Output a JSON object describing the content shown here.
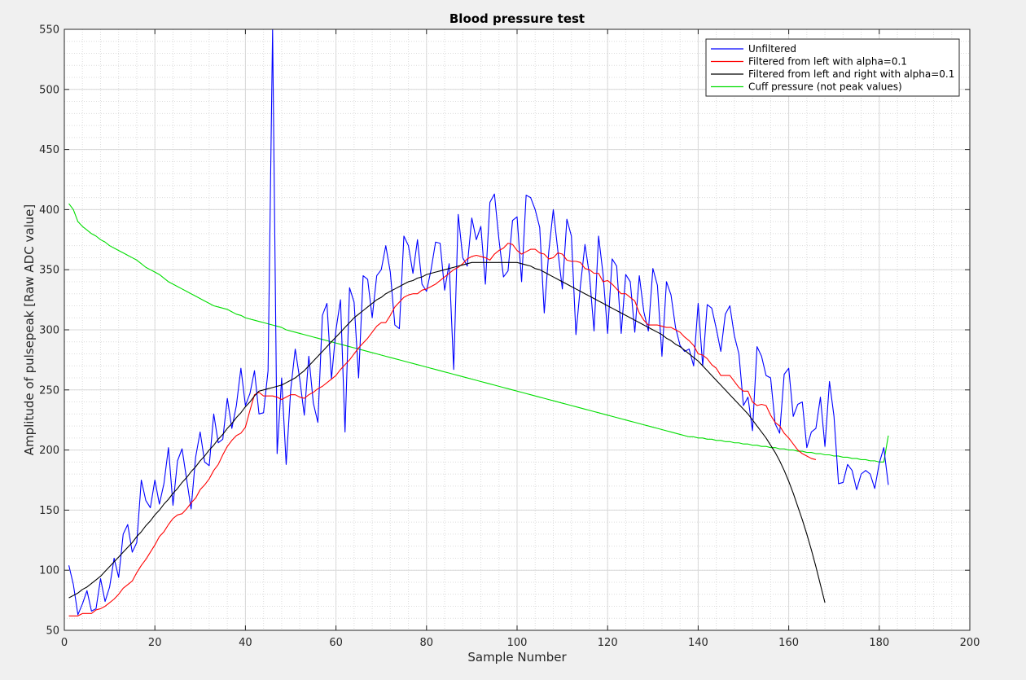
{
  "chart_data": {
    "type": "line",
    "title": "Blood pressure test",
    "xlabel": "Sample Number",
    "ylabel": "Amplitude of pulsepeak [Raw ADC value]",
    "xlim": [
      0,
      200
    ],
    "ylim": [
      50,
      550
    ],
    "x_ticks": [
      0,
      20,
      40,
      60,
      80,
      100,
      120,
      140,
      160,
      180,
      200
    ],
    "y_ticks": [
      50,
      100,
      150,
      200,
      250,
      300,
      350,
      400,
      450,
      500,
      550
    ],
    "x_tick_labels": [
      "0",
      "20",
      "40",
      "60",
      "80",
      "100",
      "120",
      "140",
      "160",
      "180",
      "200"
    ],
    "y_tick_labels": [
      "50",
      "100",
      "150",
      "200",
      "250",
      "300",
      "350",
      "400",
      "450",
      "500",
      "550"
    ],
    "grid": true,
    "minor_grid": true,
    "legend_position": "top-right",
    "series": [
      {
        "name": "Unfiltered",
        "color": "#0000ff",
        "x_start": 1,
        "values": [
          104,
          88,
          63,
          72,
          83,
          66,
          68,
          93,
          74,
          86,
          110,
          94,
          130,
          138,
          115,
          123,
          175,
          158,
          152,
          175,
          155,
          172,
          202,
          154,
          191,
          201,
          176,
          151,
          194,
          215,
          190,
          187,
          230,
          206,
          209,
          243,
          218,
          237,
          268,
          237,
          247,
          266,
          230,
          231,
          266,
          550,
          197,
          260,
          188,
          250,
          284,
          259,
          229,
          278,
          239,
          223,
          312,
          322,
          259,
          300,
          325,
          215,
          335,
          323,
          260,
          345,
          342,
          310,
          345,
          350,
          370,
          348,
          304,
          301,
          378,
          370,
          347,
          375,
          338,
          332,
          350,
          373,
          372,
          333,
          355,
          267,
          396,
          360,
          353,
          393,
          375,
          386,
          338,
          406,
          413,
          375,
          344,
          349,
          391,
          394,
          340,
          412,
          410,
          400,
          385,
          314,
          365,
          400,
          366,
          334,
          392,
          378,
          296,
          337,
          371,
          345,
          299,
          378,
          346,
          297,
          359,
          353,
          297,
          346,
          340,
          298,
          345,
          315,
          299,
          351,
          337,
          278,
          340,
          329,
          302,
          287,
          282,
          284,
          270,
          322,
          270,
          321,
          318,
          301,
          282,
          313,
          320,
          295,
          280,
          237,
          244,
          216,
          286,
          278,
          262,
          260,
          222,
          214,
          263,
          268,
          228,
          238,
          240,
          202,
          215,
          218,
          244,
          203,
          257,
          228,
          172,
          173,
          188,
          183,
          167,
          180,
          183,
          180,
          168,
          189,
          202,
          171
        ]
      },
      {
        "name": "Filtered from left with alpha=0.1",
        "color": "#ff0000",
        "x_start": 1,
        "values": [
          62,
          62,
          62,
          64,
          64,
          64,
          67,
          68,
          70,
          73,
          76,
          80,
          85,
          88,
          91,
          98,
          104,
          109,
          115,
          121,
          128,
          132,
          138,
          143,
          146,
          147,
          151,
          156,
          160,
          167,
          171,
          176,
          183,
          188,
          196,
          203,
          208,
          212,
          214,
          219,
          233,
          246,
          248,
          245,
          245,
          245,
          244,
          242,
          244,
          246,
          246,
          244,
          243,
          246,
          248,
          251,
          253,
          256,
          259,
          262,
          267,
          271,
          275,
          280,
          285,
          289,
          293,
          298,
          303,
          306,
          306,
          312,
          319,
          323,
          327,
          329,
          330,
          330,
          333,
          334,
          336,
          338,
          341,
          344,
          347,
          350,
          352,
          355,
          359,
          361,
          362,
          361,
          360,
          358,
          363,
          366,
          368,
          372,
          371,
          366,
          363,
          365,
          367,
          367,
          364,
          363,
          359,
          360,
          364,
          363,
          358,
          357,
          357,
          356,
          351,
          350,
          347,
          347,
          340,
          341,
          338,
          334,
          330,
          330,
          327,
          324,
          314,
          308,
          304,
          304,
          304,
          303,
          302,
          302,
          300,
          298,
          294,
          291,
          287,
          280,
          279,
          276,
          271,
          268,
          262,
          262,
          262,
          257,
          252,
          249,
          249,
          240,
          237,
          238,
          237,
          229,
          223,
          220,
          214,
          210,
          205,
          200,
          197,
          195,
          193,
          192
        ]
      },
      {
        "name": "Filtered from left and right with alpha=0.1",
        "color": "#000000",
        "x_start": 1,
        "values": [
          77,
          79,
          81,
          84,
          86,
          89,
          92,
          95,
          99,
          103,
          107,
          111,
          115,
          119,
          123,
          128,
          132,
          137,
          141,
          146,
          150,
          155,
          159,
          164,
          168,
          173,
          177,
          182,
          186,
          191,
          195,
          200,
          204,
          209,
          213,
          218,
          222,
          227,
          231,
          236,
          240,
          245,
          249,
          250,
          251,
          252,
          253,
          254,
          256,
          258,
          260,
          263,
          266,
          270,
          274,
          278,
          282,
          286,
          290,
          294,
          298,
          302,
          306,
          310,
          313,
          316,
          319,
          322,
          325,
          327,
          330,
          332,
          334,
          336,
          338,
          340,
          341,
          343,
          344,
          346,
          347,
          348,
          349,
          350,
          351,
          352,
          353,
          354,
          355,
          356,
          356,
          356,
          356,
          356,
          356,
          356,
          356,
          356,
          356,
          356,
          355,
          354,
          353,
          351,
          350,
          348,
          346,
          344,
          342,
          340,
          338,
          336,
          334,
          332,
          330,
          328,
          326,
          324,
          322,
          320,
          318,
          316,
          314,
          312,
          310,
          308,
          306,
          304,
          302,
          300,
          298,
          296,
          293,
          291,
          288,
          286,
          283,
          280,
          277,
          274,
          270,
          266,
          262,
          258,
          254,
          250,
          246,
          242,
          238,
          234,
          230,
          225,
          220,
          215,
          210,
          204,
          198,
          191,
          183,
          174,
          164,
          153,
          142,
          130,
          117,
          103,
          88,
          73
        ]
      },
      {
        "name": "Cuff pressure (not peak values)",
        "color": "#00dd00",
        "x_start": 1,
        "values": [
          405,
          400,
          390,
          386,
          383,
          380,
          378,
          375,
          373,
          370,
          368,
          366,
          364,
          362,
          360,
          358,
          355,
          352,
          350,
          348,
          346,
          343,
          340,
          338,
          336,
          334,
          332,
          330,
          328,
          326,
          324,
          322,
          320,
          319,
          318,
          317,
          315,
          313,
          312,
          310,
          309,
          308,
          307,
          306,
          305,
          304,
          303,
          302,
          300,
          299,
          298,
          297,
          296,
          295,
          294,
          293,
          292,
          291,
          290,
          289,
          288,
          287,
          286,
          285,
          284,
          283,
          282,
          281,
          280,
          279,
          278,
          277,
          276,
          275,
          274,
          273,
          272,
          271,
          270,
          269,
          268,
          267,
          266,
          265,
          264,
          263,
          262,
          261,
          260,
          259,
          258,
          257,
          256,
          255,
          254,
          253,
          252,
          251,
          250,
          249,
          248,
          247,
          246,
          245,
          244,
          243,
          242,
          241,
          240,
          239,
          238,
          237,
          236,
          235,
          234,
          233,
          232,
          231,
          230,
          229,
          228,
          227,
          226,
          225,
          224,
          223,
          222,
          221,
          220,
          219,
          218,
          217,
          216,
          215,
          214,
          213,
          212,
          211,
          211,
          210,
          210,
          209,
          209,
          208,
          208,
          207,
          207,
          206,
          206,
          205,
          205,
          204,
          204,
          203,
          203,
          202,
          202,
          201,
          201,
          200,
          200,
          199,
          199,
          198,
          198,
          197,
          197,
          196,
          196,
          195,
          195,
          194,
          194,
          193,
          193,
          192,
          192,
          191,
          191,
          190,
          190,
          212
        ]
      }
    ]
  }
}
